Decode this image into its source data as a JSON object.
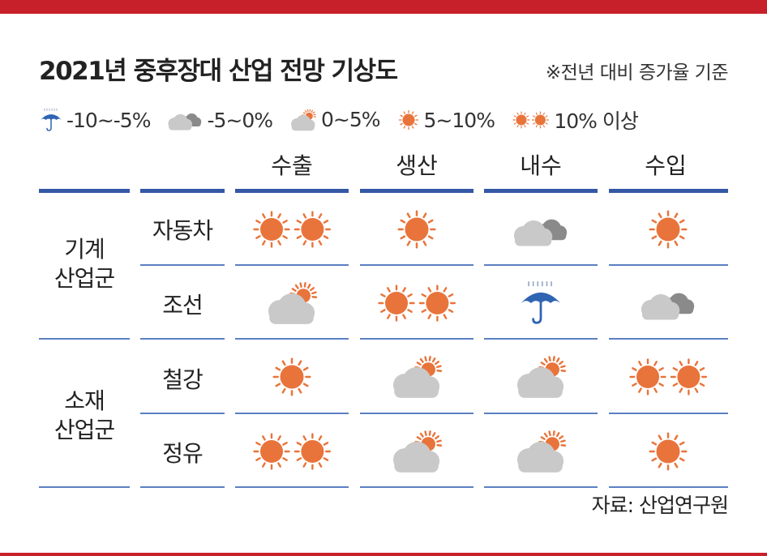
{
  "title": "2021년 중후장대 산업 전망 기상도",
  "basis": "※전년 대비 증가율 기준",
  "legend": [
    {
      "icon": "umbrella-icon",
      "label": "-10~-5%"
    },
    {
      "icon": "dark-cloud-icon",
      "label": "-5~0%"
    },
    {
      "icon": "sun-cloud-icon",
      "label": "0~5%"
    },
    {
      "icon": "sun-icon",
      "label": "5~10%"
    },
    {
      "icon": "double-sun-icon",
      "label": "10% 이상"
    }
  ],
  "columns": [
    "수출",
    "생산",
    "내수",
    "수입"
  ],
  "groups": [
    {
      "name": "기계\n산업군",
      "rows": [
        {
          "label": "자동차",
          "cells": [
            "double-sun",
            "sun",
            "dark-cloud",
            "sun"
          ]
        },
        {
          "label": "조선",
          "cells": [
            "sun-cloud",
            "double-sun",
            "umbrella",
            "dark-cloud"
          ]
        }
      ]
    },
    {
      "name": "소재\n산업군",
      "rows": [
        {
          "label": "철강",
          "cells": [
            "sun",
            "sun-cloud",
            "sun-cloud",
            "double-sun"
          ]
        },
        {
          "label": "정유",
          "cells": [
            "double-sun",
            "sun-cloud",
            "sun-cloud",
            "sun"
          ]
        }
      ]
    }
  ],
  "source": "자료: 산업연구원",
  "colors": {
    "accent_red": "#c8202a",
    "rule_blue": "#3458a5",
    "sun": "#e8743b",
    "cloud": "#c9c9c9",
    "dark_cloud": "#8a8a8a",
    "umbrella": "#2f64b3"
  }
}
